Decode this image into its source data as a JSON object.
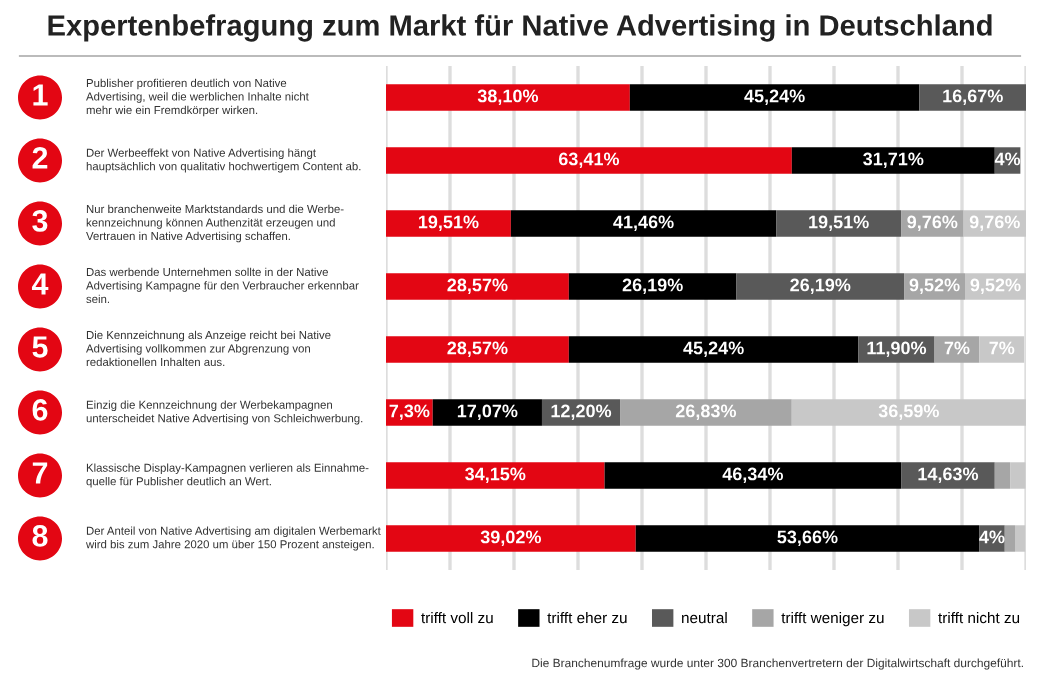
{
  "chart_data": {
    "type": "bar",
    "orientation": "horizontal",
    "stacked": true,
    "title": "Expertenbefragung zum Markt für Native Advertising in Deutschland",
    "categories": [
      "Publisher profitieren deutlich von Native\nAdvertising, weil die werblichen Inhalte nicht\nmehr wie ein Fremdkörper wirken.",
      "Der Werbeeffekt von Native Advertising hängt\nhauptsächlich von qualitativ hochwertigem Content ab.",
      "Nur branchenweite Marktstandards und die Werbe-\nkennzeichnung können Authenzität erzeugen und\nVertrauen in Native Advertising schaffen.",
      "Das werbende Unternehmen sollte in der Native\nAdvertising Kampagne für den Verbraucher erkennbar\nsein.",
      "Die Kennzeichnung als Anzeige reicht bei Native\nAdvertising vollkommen zur Abgrenzung von\nredaktionellen Inhalten aus.",
      "Einzig die Kennzeichnung der Werbekampagnen\nunterscheidet Native Advertising von Schleichwerbung.",
      "Klassische Display-Kampagnen verlieren als Einnahme-\nquelle für Publisher deutlich an Wert.",
      "Der Anteil von Native Advertising am digitalen Werbemarkt\nwird bis zum Jahre 2020 um über 150 Prozent ansteigen."
    ],
    "series": [
      {
        "name": "trifft voll zu",
        "color": "#e30613",
        "values": [
          38.1,
          63.41,
          19.51,
          28.57,
          28.57,
          7.3,
          34.15,
          39.02
        ],
        "value_labels": [
          "38,10%",
          "63,41%",
          "19,51%",
          "28,57%",
          "28,57%",
          "7,3%",
          "34,15%",
          "39,02%"
        ]
      },
      {
        "name": "trifft eher zu",
        "color": "#000000",
        "values": [
          45.24,
          31.71,
          41.46,
          26.19,
          45.24,
          17.07,
          46.34,
          53.66
        ],
        "value_labels": [
          "45,24%",
          "31,71%",
          "41,46%",
          "26,19%",
          "45,24%",
          "17,07%",
          "46,34%",
          "53,66%"
        ]
      },
      {
        "name": "neutral",
        "color": "#595959",
        "values": [
          16.67,
          4,
          19.51,
          26.19,
          11.9,
          12.2,
          14.63,
          4
        ],
        "value_labels": [
          "16,67%",
          "4%",
          "19,51%",
          "26,19%",
          "11,90%",
          "12,20%",
          "14,63%",
          "4%"
        ]
      },
      {
        "name": "trifft weniger zu",
        "color": "#a6a6a6",
        "values": [
          0,
          0,
          9.76,
          9.52,
          7,
          26.83,
          2.4,
          1.6
        ],
        "value_labels": [
          null,
          null,
          "9,76%",
          "9,52%",
          "7%",
          "26,83%",
          null,
          null
        ]
      },
      {
        "name": "trifft nicht zu",
        "color": "#c8c8c8",
        "values": [
          0,
          0,
          9.76,
          9.52,
          7,
          36.59,
          2.4,
          1.6
        ],
        "value_labels": [
          null,
          null,
          "9,76%",
          "9,52%",
          "7%",
          "36,59%",
          null,
          null
        ]
      }
    ],
    "xlim": [
      0,
      100
    ],
    "xticks": [
      {
        "value": 0,
        "label": null
      },
      {
        "value": 10,
        "label": null
      },
      {
        "value": 20,
        "label": null
      },
      {
        "value": 30,
        "label": null
      },
      {
        "value": 40,
        "label": null
      },
      {
        "value": 50,
        "label": null
      },
      {
        "value": 60,
        "label": null
      },
      {
        "value": 70,
        "label": null
      },
      {
        "value": 80,
        "label": null
      },
      {
        "value": 90,
        "label": null
      },
      {
        "value": 100,
        "label": null
      }
    ],
    "grid": "x",
    "legend": "bottom",
    "annotations": [
      "1",
      "2",
      "3",
      "4",
      "5",
      "6",
      "7",
      "8",
      "Die Branchenumfrage wurde unter 300 Branchenvertretern der Digitalwirtschaft durchgeführt."
    ]
  }
}
